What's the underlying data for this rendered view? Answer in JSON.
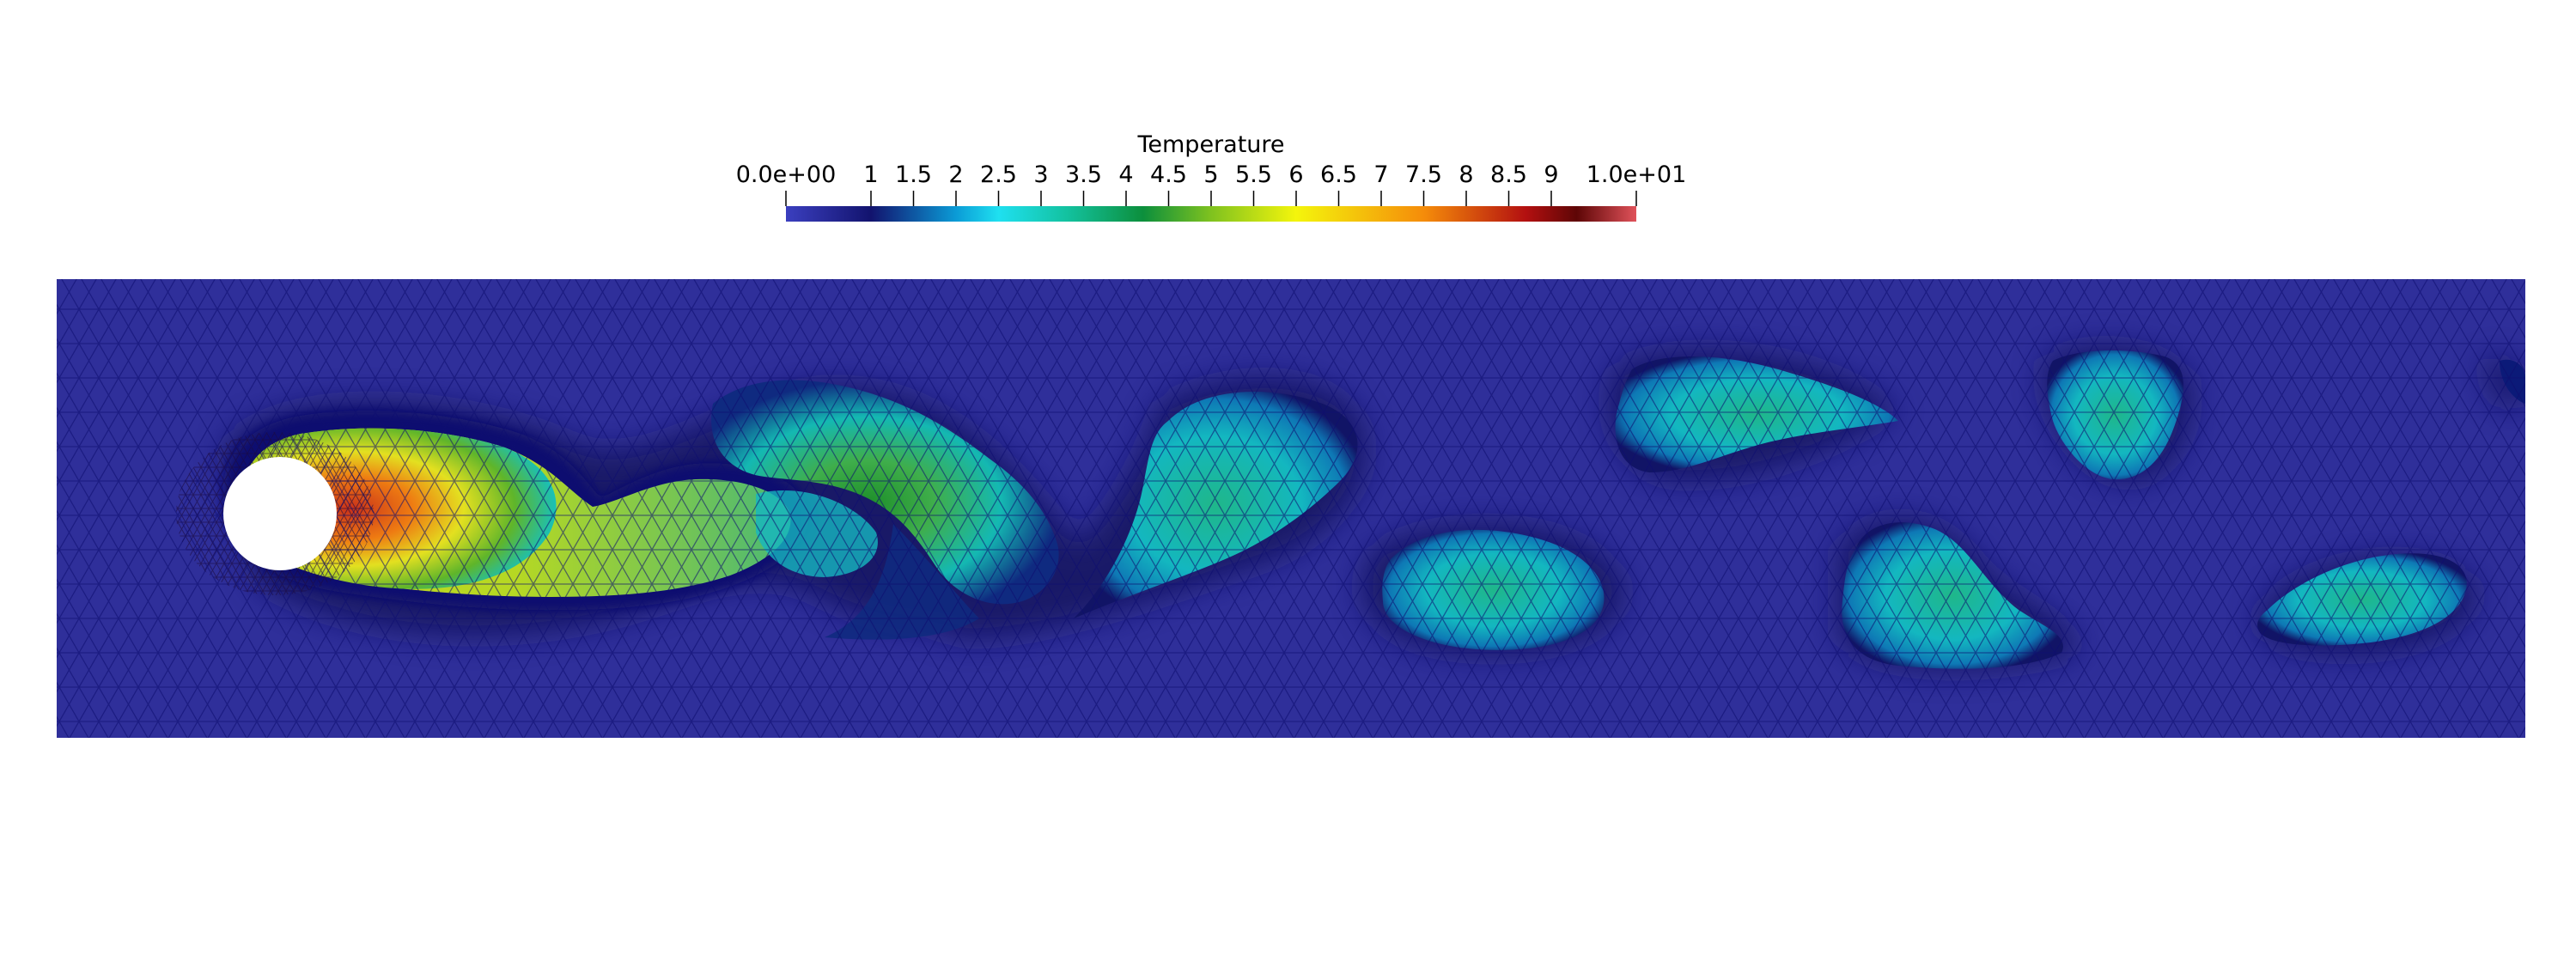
{
  "colorbar": {
    "title": "Temperature",
    "tick_labels": [
      "0.0e+00",
      "1",
      "1.5",
      "2",
      "2.5",
      "3",
      "3.5",
      "4",
      "4.5",
      "5",
      "5.5",
      "6",
      "6.5",
      "7",
      "7.5",
      "8",
      "8.5",
      "9",
      "1.0e+01"
    ],
    "tick_values": [
      0,
      1,
      1.5,
      2,
      2.5,
      3,
      3.5,
      4,
      4.5,
      5,
      5.5,
      6,
      6.5,
      7,
      7.5,
      8,
      8.5,
      9,
      10
    ],
    "range": [
      0,
      10
    ],
    "colormap_stops": [
      {
        "value": 0.0,
        "color": "#3b3fbf"
      },
      {
        "value": 1.0,
        "color": "#12136e"
      },
      {
        "value": 2.0,
        "color": "#0b9bd6"
      },
      {
        "value": 2.5,
        "color": "#1fe0f0"
      },
      {
        "value": 3.3,
        "color": "#13c2a0"
      },
      {
        "value": 4.2,
        "color": "#0c8f3c"
      },
      {
        "value": 5.0,
        "color": "#7fc21f"
      },
      {
        "value": 6.0,
        "color": "#f4f50c"
      },
      {
        "value": 7.5,
        "color": "#f58c0a"
      },
      {
        "value": 8.7,
        "color": "#b31010"
      },
      {
        "value": 9.3,
        "color": "#5e0606"
      },
      {
        "value": 10.0,
        "color": "#e0525a"
      }
    ]
  },
  "field": {
    "background_color": "#2f2f9a",
    "mesh_color": "#0c0c6e",
    "obstacle_color": "#ffffff"
  }
}
